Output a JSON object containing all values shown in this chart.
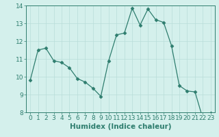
{
  "x": [
    0,
    1,
    2,
    3,
    4,
    5,
    6,
    7,
    8,
    9,
    10,
    11,
    12,
    13,
    14,
    15,
    16,
    17,
    18,
    19,
    20,
    21,
    22,
    23
  ],
  "y": [
    9.8,
    11.5,
    11.6,
    10.9,
    10.8,
    10.5,
    9.9,
    9.7,
    9.35,
    8.9,
    10.9,
    12.35,
    12.45,
    13.85,
    12.9,
    13.8,
    13.2,
    13.05,
    11.75,
    9.5,
    9.2,
    9.15,
    7.65,
    7.95
  ],
  "line_color": "#2e7d6e",
  "marker": "D",
  "marker_size": 2.5,
  "bg_color": "#d4f0ec",
  "grid_color": "#b8ddd8",
  "axis_color": "#2e7d6e",
  "xlabel": "Humidex (Indice chaleur)",
  "ylim": [
    8,
    14
  ],
  "xlim": [
    -0.5,
    23.5
  ],
  "yticks": [
    8,
    9,
    10,
    11,
    12,
    13,
    14
  ],
  "xticks": [
    0,
    1,
    2,
    3,
    4,
    5,
    6,
    7,
    8,
    9,
    10,
    11,
    12,
    13,
    14,
    15,
    16,
    17,
    18,
    19,
    20,
    21,
    22,
    23
  ],
  "font_size": 6.5,
  "label_font_size": 7.5
}
